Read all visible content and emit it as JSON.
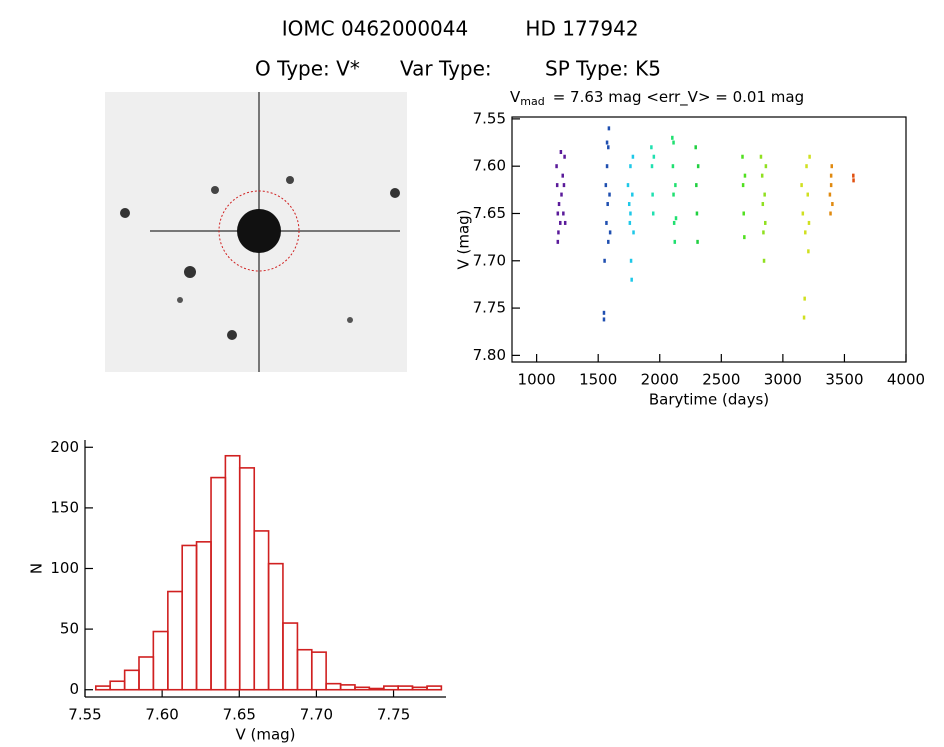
{
  "header": {
    "id_left": "IOMC 0462000044",
    "id_right": "HD 177942",
    "otype": "O Type: V*",
    "vartype": "Var Type:",
    "sptype": "SP Type: K5"
  },
  "chart_data": [
    {
      "type": "scatter",
      "title_main": "V",
      "title_sub": "mad",
      "title_rest": "= 7.63 mag <err_V> = 0.01 mag",
      "xlabel": "Barytime (days)",
      "ylabel": "V (mag)",
      "xlim": [
        800,
        4000
      ],
      "xticks": [
        1000,
        1500,
        2000,
        2500,
        3000,
        3500,
        4000
      ],
      "ylim": [
        7.548,
        7.807
      ],
      "y_inverted": true,
      "yticks": [
        7.55,
        {
          "value": 7.6,
          "label": "7.60"
        },
        7.65,
        {
          "value": 7.7,
          "label": "7.70"
        },
        7.75,
        {
          "value": 7.8,
          "label": "7.80"
        }
      ],
      "series": [
        {
          "color": "#5a1a9a",
          "x": [
            1160,
            1165,
            1170,
            1175,
            1180,
            1190,
            1200,
            1210,
            1215,
            1220,
            1225,
            1230,
            1170,
            1195
          ],
          "values": [
            7.6,
            7.62,
            7.65,
            7.67,
            7.64,
            7.66,
            7.63,
            7.61,
            7.65,
            7.62,
            7.59,
            7.66,
            7.68,
            7.585
          ]
        },
        {
          "color": "#1f4fb0",
          "x": [
            1545,
            1545,
            1550,
            1560,
            1565,
            1570,
            1575,
            1580,
            1585,
            1590,
            1595,
            1580,
            1570
          ],
          "values": [
            7.755,
            7.762,
            7.7,
            7.62,
            7.66,
            7.6,
            7.64,
            7.58,
            7.56,
            7.63,
            7.67,
            7.68,
            7.575
          ]
        },
        {
          "color": "#1ec8e8",
          "x": [
            1740,
            1750,
            1755,
            1760,
            1765,
            1770,
            1775,
            1780,
            1785,
            1760
          ],
          "values": [
            7.62,
            7.64,
            7.66,
            7.6,
            7.7,
            7.72,
            7.63,
            7.59,
            7.67,
            7.65
          ]
        },
        {
          "color": "#20e0b0",
          "x": [
            1930,
            1935,
            1940,
            1945,
            1950
          ],
          "values": [
            7.58,
            7.6,
            7.63,
            7.65,
            7.59
          ]
        },
        {
          "color": "#20e070",
          "x": [
            2100,
            2105,
            2110,
            2115,
            2120,
            2125,
            2130,
            2110
          ],
          "values": [
            7.57,
            7.6,
            7.63,
            7.66,
            7.68,
            7.62,
            7.655,
            7.575
          ]
        },
        {
          "color": "#20d040",
          "x": [
            2290,
            2295,
            2300,
            2305,
            2310
          ],
          "values": [
            7.58,
            7.62,
            7.65,
            7.68,
            7.6
          ]
        },
        {
          "color": "#50e020",
          "x": [
            2670,
            2675,
            2680,
            2685,
            2690
          ],
          "values": [
            7.59,
            7.62,
            7.65,
            7.675,
            7.61
          ]
        },
        {
          "color": "#90e020",
          "x": [
            2820,
            2830,
            2835,
            2840,
            2845,
            2850,
            2855,
            2860
          ],
          "values": [
            7.59,
            7.61,
            7.64,
            7.67,
            7.7,
            7.63,
            7.66,
            7.6
          ]
        },
        {
          "color": "#d0e020",
          "x": [
            3150,
            3160,
            3170,
            3175,
            3180,
            3190,
            3200,
            3210,
            3215,
            3205
          ],
          "values": [
            7.62,
            7.65,
            7.76,
            7.74,
            7.67,
            7.6,
            7.63,
            7.66,
            7.59,
            7.69
          ]
        },
        {
          "color": "#e08a10",
          "x": [
            3380,
            3385,
            3390,
            3395,
            3400,
            3390
          ],
          "values": [
            7.63,
            7.65,
            7.62,
            7.6,
            7.64,
            7.61
          ]
        },
        {
          "color": "#e05010",
          "x": [
            3570,
            3572
          ],
          "values": [
            7.61,
            7.615
          ]
        }
      ]
    },
    {
      "type": "histogram",
      "xlabel": "V (mag)",
      "ylabel": "N",
      "color": "#d02020",
      "xlim": [
        7.55,
        7.784
      ],
      "xticks": [
        7.55,
        {
          "value": 7.6,
          "label": "7.60"
        },
        7.65,
        {
          "value": 7.7,
          "label": "7.70"
        },
        7.75
      ],
      "ylim": [
        -6,
        206
      ],
      "yticks": [
        0,
        50,
        100,
        150,
        200
      ],
      "bins": [
        7.557,
        7.5663,
        7.5757,
        7.585,
        7.5943,
        7.6037,
        7.613,
        7.6223,
        7.6317,
        7.641,
        7.6503,
        7.6597,
        7.669,
        7.6783,
        7.6877,
        7.697,
        7.7063,
        7.7157,
        7.725,
        7.7343,
        7.7437,
        7.753,
        7.7623,
        7.7717,
        7.781
      ],
      "values": [
        3,
        7,
        16,
        27,
        48,
        81,
        119,
        122,
        175,
        193,
        183,
        131,
        104,
        55,
        33,
        31,
        5,
        4,
        2,
        1,
        3,
        3,
        2,
        3
      ]
    }
  ]
}
